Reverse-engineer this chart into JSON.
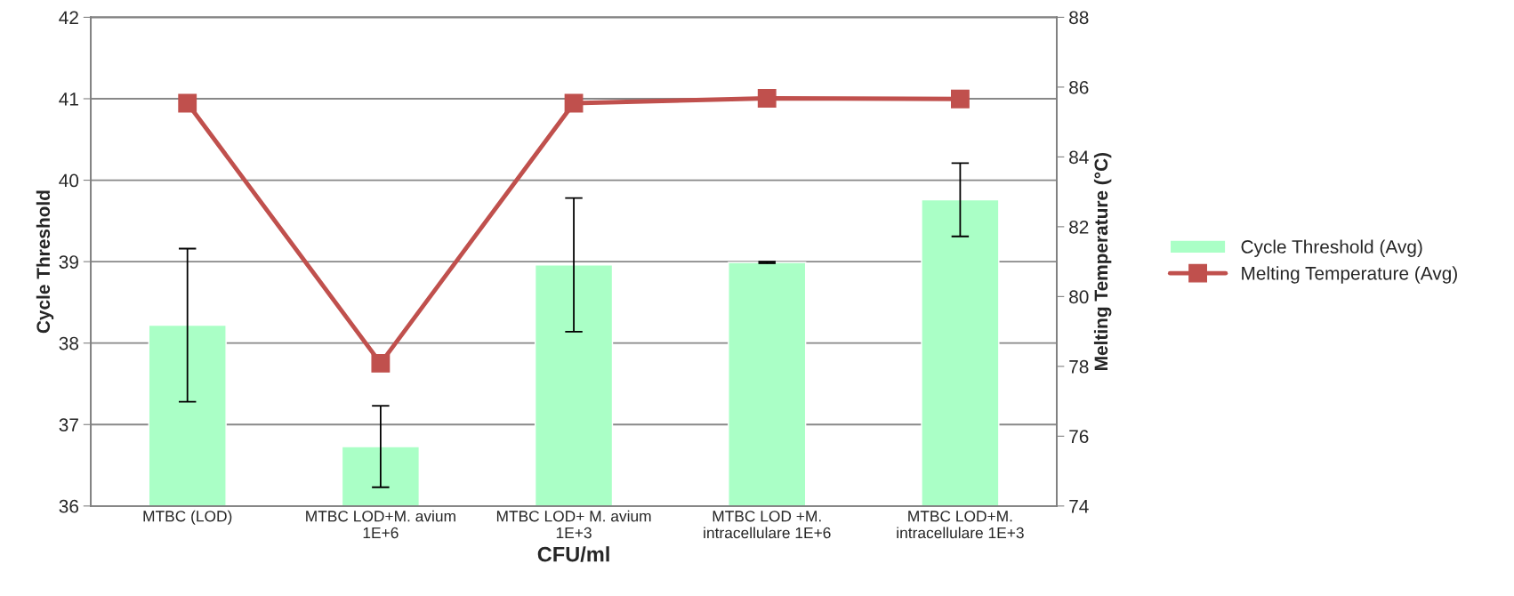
{
  "chart_data": {
    "type": "bar",
    "xlabel": "CFU/ml",
    "ylabel": "Cycle Threshold",
    "y2label": "Melting Temperature (°C)",
    "categories": [
      "MTBC (LOD)",
      "MTBC LOD+M. avium\n1E+6",
      "MTBC LOD+ M. avium\n1E+3",
      "MTBC LOD +M.\nintracellulare 1E+6",
      "MTBC LOD+M.\nintracellulare 1E+3"
    ],
    "series": [
      {
        "name": "Cycle Threshold (Avg)",
        "color": "#aaffc6",
        "values": [
          38.22,
          36.73,
          38.96,
          38.99,
          39.76
        ],
        "errors": [
          0.94,
          0.5,
          0.82,
          0.01,
          0.45
        ]
      },
      {
        "name": "Melting Temperature (Avg)",
        "type": "line",
        "axis": "y2",
        "color": "#c0504d",
        "values": [
          85.54,
          78.09,
          85.54,
          85.68,
          85.66
        ],
        "marker": "square"
      }
    ],
    "ylim": [
      36,
      42
    ],
    "yticks": [
      36,
      37,
      38,
      39,
      40,
      41,
      42
    ],
    "y2lim": [
      74,
      88
    ],
    "y2ticks": [
      74,
      76,
      78,
      80,
      82,
      84,
      86,
      88
    ],
    "grid": "y",
    "legend": "right"
  }
}
